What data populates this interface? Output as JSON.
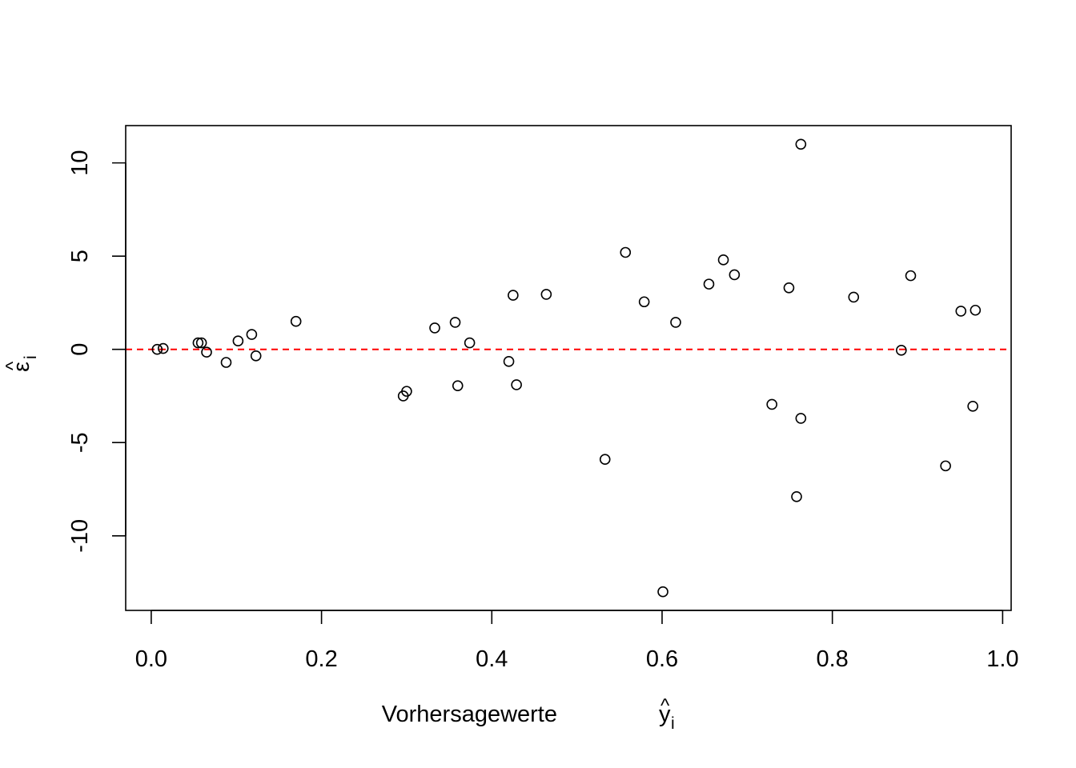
{
  "chart_data": {
    "type": "scatter",
    "title": "",
    "xlabel": "Vorhersagewerte",
    "xlabel_symbol": "y",
    "xlabel_symbol_hat": "^",
    "xlabel_symbol_sub": "i",
    "ylabel_symbol": "ε",
    "ylabel_symbol_hat": "^",
    "ylabel_symbol_sub": "i",
    "xlim": [
      -0.03,
      1.01
    ],
    "ylim": [
      -14.0,
      12.0
    ],
    "x_ticks": [
      0.0,
      0.2,
      0.4,
      0.6,
      0.8,
      1.0
    ],
    "x_tick_labels": [
      "0.0",
      "0.2",
      "0.4",
      "0.6",
      "0.8",
      "1.0"
    ],
    "y_ticks": [
      -10,
      -5,
      0,
      5,
      10
    ],
    "y_tick_labels": [
      "-10",
      "-5",
      "0",
      "5",
      "10"
    ],
    "grid": false,
    "reference_line": {
      "y": 0,
      "color": "#ff0000",
      "style": "dashed"
    },
    "marker": "open-circle",
    "points": [
      {
        "x": 0.007,
        "y": 0.0
      },
      {
        "x": 0.014,
        "y": 0.05
      },
      {
        "x": 0.055,
        "y": 0.35
      },
      {
        "x": 0.059,
        "y": 0.35
      },
      {
        "x": 0.065,
        "y": -0.15
      },
      {
        "x": 0.088,
        "y": -0.7
      },
      {
        "x": 0.102,
        "y": 0.45
      },
      {
        "x": 0.118,
        "y": 0.8
      },
      {
        "x": 0.123,
        "y": -0.35
      },
      {
        "x": 0.17,
        "y": 1.5
      },
      {
        "x": 0.296,
        "y": -2.5
      },
      {
        "x": 0.3,
        "y": -2.25
      },
      {
        "x": 0.333,
        "y": 1.15
      },
      {
        "x": 0.357,
        "y": 1.45
      },
      {
        "x": 0.36,
        "y": -1.95
      },
      {
        "x": 0.374,
        "y": 0.35
      },
      {
        "x": 0.42,
        "y": -0.65
      },
      {
        "x": 0.425,
        "y": 2.9
      },
      {
        "x": 0.429,
        "y": -1.9
      },
      {
        "x": 0.464,
        "y": 2.95
      },
      {
        "x": 0.533,
        "y": -5.9
      },
      {
        "x": 0.557,
        "y": 5.2
      },
      {
        "x": 0.579,
        "y": 2.55
      },
      {
        "x": 0.601,
        "y": -13.0
      },
      {
        "x": 0.616,
        "y": 1.45
      },
      {
        "x": 0.655,
        "y": 3.5
      },
      {
        "x": 0.672,
        "y": 4.8
      },
      {
        "x": 0.685,
        "y": 4.0
      },
      {
        "x": 0.729,
        "y": -2.95
      },
      {
        "x": 0.749,
        "y": 3.3
      },
      {
        "x": 0.758,
        "y": -7.9
      },
      {
        "x": 0.763,
        "y": 11.0
      },
      {
        "x": 0.763,
        "y": -3.7
      },
      {
        "x": 0.825,
        "y": 2.8
      },
      {
        "x": 0.881,
        "y": -0.05
      },
      {
        "x": 0.892,
        "y": 3.95
      },
      {
        "x": 0.933,
        "y": -6.25
      },
      {
        "x": 0.951,
        "y": 2.05
      },
      {
        "x": 0.965,
        "y": -3.05
      },
      {
        "x": 0.968,
        "y": 2.1
      }
    ]
  }
}
